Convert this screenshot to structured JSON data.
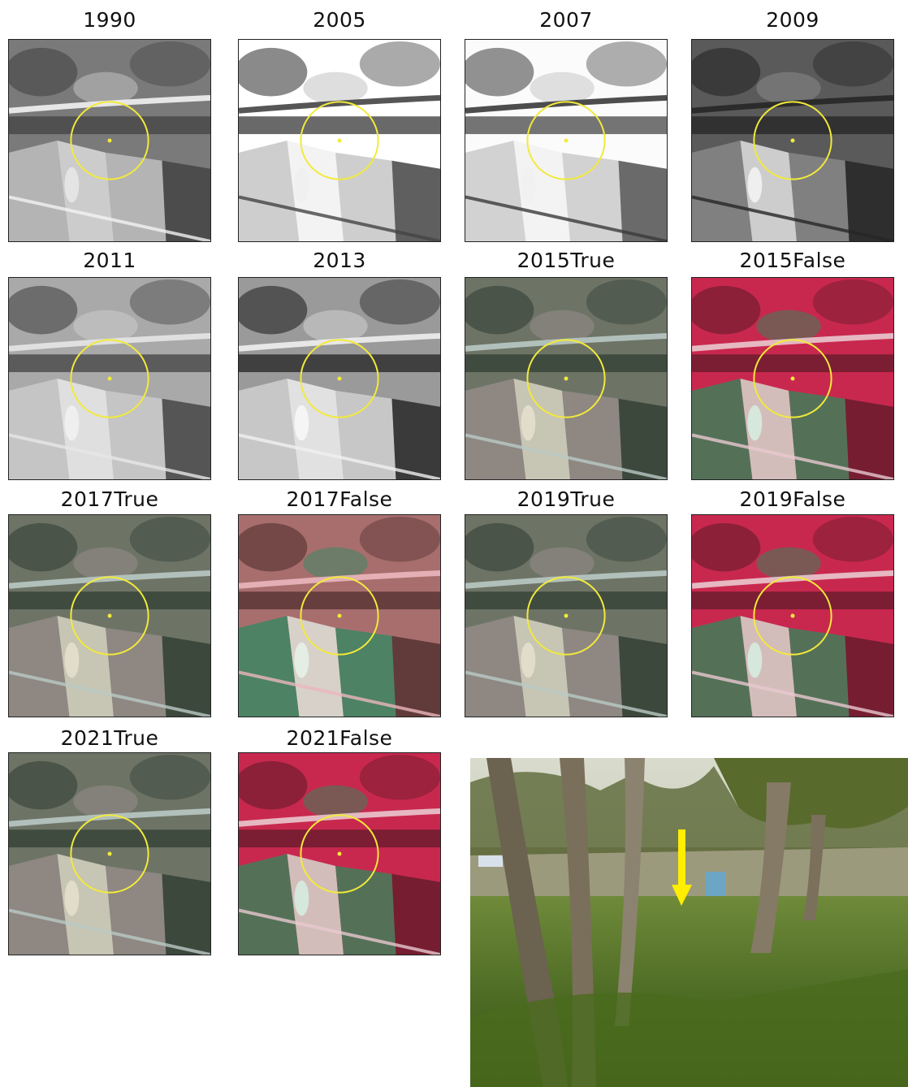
{
  "tiles": [
    {
      "label": "1990",
      "style": "bw-old"
    },
    {
      "label": "2005",
      "style": "bw-bright"
    },
    {
      "label": "2007",
      "style": "bw-bright2"
    },
    {
      "label": "2009",
      "style": "bw-dark"
    },
    {
      "label": "2011",
      "style": "bw-mid"
    },
    {
      "label": "2013",
      "style": "bw-contrast"
    },
    {
      "label": "2015True",
      "style": "true"
    },
    {
      "label": "2015False",
      "style": "false"
    },
    {
      "label": "2017True",
      "style": "true"
    },
    {
      "label": "2017False",
      "style": "false-pale"
    },
    {
      "label": "2019True",
      "style": "true"
    },
    {
      "label": "2019False",
      "style": "false"
    },
    {
      "label": "2021True",
      "style": "true"
    },
    {
      "label": "2021False",
      "style": "false"
    }
  ],
  "colors": {
    "circle": "#f2ea3a",
    "arrow": "#ffee00"
  },
  "photo": {
    "description_icon": "field-photo"
  }
}
